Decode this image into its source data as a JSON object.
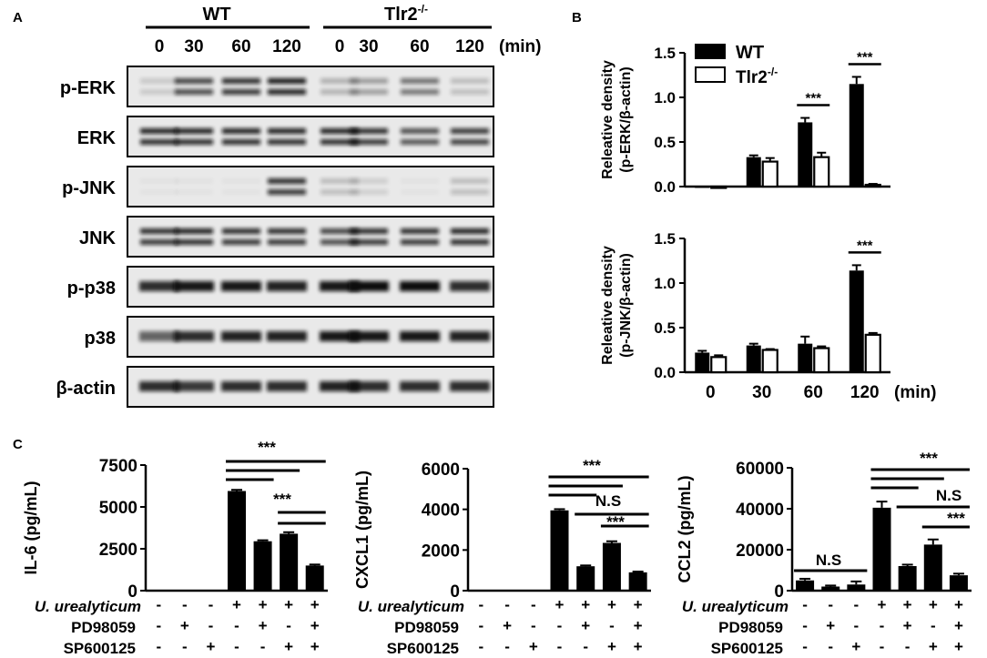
{
  "panels": {
    "a": "A",
    "b": "B",
    "c": "C"
  },
  "blot": {
    "groups": [
      "WT",
      "Tlr2"
    ],
    "group_sup": "-/-",
    "lanes": [
      "0",
      "30",
      "60",
      "120",
      "0",
      "30",
      "60",
      "120"
    ],
    "unit": "(min)",
    "rows": [
      "p-ERK",
      "ERK",
      "p-JNK",
      "JNK",
      "p-p38",
      "p38",
      "β-actin"
    ],
    "intensities": [
      [
        0.15,
        0.75,
        0.85,
        0.95,
        0.25,
        0.35,
        0.55,
        0.2
      ],
      [
        0.9,
        0.9,
        0.9,
        0.9,
        0.9,
        0.85,
        0.7,
        0.8
      ],
      [
        0.03,
        0.03,
        0.03,
        0.85,
        0.2,
        0.12,
        0.03,
        0.2
      ],
      [
        0.85,
        0.9,
        0.85,
        0.85,
        0.75,
        0.85,
        0.85,
        0.9
      ],
      [
        0.85,
        0.95,
        0.95,
        0.9,
        0.95,
        1.0,
        1.0,
        0.85
      ],
      [
        0.6,
        0.85,
        0.9,
        0.9,
        0.95,
        0.95,
        0.95,
        0.9
      ],
      [
        0.85,
        0.8,
        0.85,
        0.85,
        0.9,
        0.85,
        0.85,
        0.85
      ]
    ]
  },
  "legend": {
    "wt": "WT",
    "tlr2": "Tlr2",
    "sup": "-/-"
  },
  "chart_data": [
    {
      "type": "bar",
      "ylabel": [
        "Releative density",
        "(p-ERK/β-actin)"
      ],
      "categories": [
        "0",
        "30",
        "60",
        "120"
      ],
      "series": [
        {
          "name": "WT",
          "values": [
            0.0,
            0.33,
            0.72,
            1.15
          ],
          "err": [
            0,
            0.02,
            0.05,
            0.08
          ]
        },
        {
          "name": "Tlr2-/-",
          "values": [
            0.0,
            0.28,
            0.33,
            0.02
          ],
          "err": [
            0,
            0.04,
            0.05,
            0.01
          ]
        }
      ],
      "ylim": [
        0,
        1.5
      ],
      "yticks": [
        "0.0",
        "0.5",
        "1.0",
        "1.5"
      ],
      "sig": [
        {
          "cat": 2,
          "label": "***"
        },
        {
          "cat": 3,
          "label": "***"
        }
      ]
    },
    {
      "type": "bar",
      "ylabel": [
        "Releative density",
        "(p-JNK/β-actin)"
      ],
      "categories": [
        "0",
        "30",
        "60",
        "120"
      ],
      "xunit": "(min)",
      "series": [
        {
          "name": "WT",
          "values": [
            0.22,
            0.3,
            0.32,
            1.14
          ],
          "err": [
            0.02,
            0.02,
            0.08,
            0.06
          ]
        },
        {
          "name": "Tlr2-/-",
          "values": [
            0.17,
            0.25,
            0.27,
            0.42
          ],
          "err": [
            0.02,
            0.01,
            0.02,
            0.02
          ]
        }
      ],
      "ylim": [
        0,
        1.5
      ],
      "yticks": [
        "0.0",
        "0.5",
        "1.0",
        "1.5"
      ],
      "sig": [
        {
          "cat": 3,
          "label": "***"
        }
      ]
    },
    {
      "type": "bar",
      "ylabel": "IL-6 (pg/mL)",
      "values": [
        0,
        0,
        0,
        5950,
        2950,
        3400,
        1500
      ],
      "err": [
        0,
        0,
        0,
        70,
        60,
        90,
        60
      ],
      "ylim": [
        0,
        7500
      ],
      "yticks": [
        "0",
        "2500",
        "5000",
        "7500"
      ],
      "annotations": [
        "***",
        "***"
      ]
    },
    {
      "type": "bar",
      "ylabel": "CXCL1 (pg/mL)",
      "values": [
        0,
        0,
        0,
        3950,
        1200,
        2350,
        900
      ],
      "err": [
        0,
        0,
        0,
        60,
        40,
        80,
        40
      ],
      "ylim": [
        0,
        6000
      ],
      "yticks": [
        "0",
        "2000",
        "4000",
        "6000"
      ],
      "annotations": [
        "***",
        "N.S",
        "***"
      ]
    },
    {
      "type": "bar",
      "ylabel": "CCL2 (pg/mL)",
      "values": [
        5000,
        2000,
        3000,
        40500,
        12000,
        22500,
        7500
      ],
      "err": [
        800,
        500,
        1500,
        3000,
        700,
        2500,
        800
      ],
      "ylim": [
        0,
        60000
      ],
      "yticks": [
        "0",
        "20000",
        "40000",
        "60000"
      ],
      "annotations": [
        "N.S",
        "***",
        "N.S",
        "***"
      ]
    }
  ],
  "conditions": {
    "labels": [
      "U. urealyticum",
      "PD98059",
      "SP600125"
    ],
    "rows": [
      [
        "-",
        "-",
        "-",
        "+",
        "+",
        "+",
        "+"
      ],
      [
        "-",
        "+",
        "-",
        "-",
        "+",
        "-",
        "+"
      ],
      [
        "-",
        "-",
        "+",
        "-",
        "-",
        "+",
        "+"
      ]
    ]
  }
}
